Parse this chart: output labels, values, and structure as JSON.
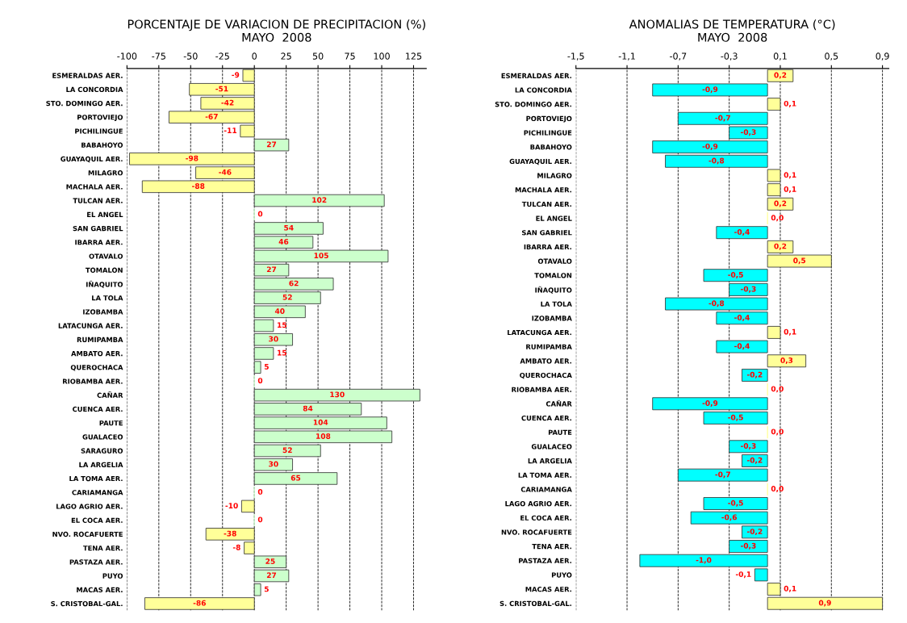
{
  "chart_data": [
    {
      "type": "bar",
      "orientation": "horizontal",
      "title": "PORCENTAJE DE VARIACION DE PRECIPITACION (%)\nMAYO  2008",
      "categories": [
        "ESMERALDAS AER.",
        "LA CONCORDIA",
        "STO. DOMINGO AER.",
        "PORTOVIEJO",
        "PICHILINGUE",
        "BABAHOYO",
        "GUAYAQUIL AER.",
        "MILAGRO",
        "MACHALA AER.",
        "TULCAN AER.",
        "EL ANGEL",
        "SAN GABRIEL",
        "IBARRA AER.",
        "OTAVALO",
        "TOMALON",
        "IÑAQUITO",
        "LA TOLA",
        "IZOBAMBA",
        "LATACUNGA AER.",
        "RUMIPAMBA",
        "AMBATO AER.",
        "QUEROCHACA",
        "RIOBAMBA AER.",
        "CAÑAR",
        "CUENCA AER.",
        "PAUTE",
        "GUALACEO",
        "SARAGURO",
        "LA ARGELIA",
        "LA TOMA AER.",
        "CARIAMANGA",
        "LAGO AGRIO AER.",
        "EL COCA AER.",
        "NVO. ROCAFUERTE",
        "TENA AER.",
        "PASTAZA AER.",
        "PUYO",
        "MACAS AER.",
        "S. CRISTOBAL-GAL."
      ],
      "values": [
        -9,
        -51,
        -42,
        -67,
        -11,
        27,
        -98,
        -46,
        -88,
        102,
        0,
        54,
        46,
        105,
        27,
        62,
        52,
        40,
        15,
        30,
        15,
        5,
        0,
        130,
        84,
        104,
        108,
        52,
        30,
        65,
        0,
        -10,
        0,
        -38,
        -8,
        25,
        27,
        5,
        -86
      ],
      "colors": [
        "#ffff99",
        "#ffff99",
        "#ffff99",
        "#ffff99",
        "#ffff99",
        "#ccffcc",
        "#ffff99",
        "#ffff99",
        "#ffff99",
        "#ccffcc",
        "#ccffcc",
        "#ccffcc",
        "#ccffcc",
        "#ccffcc",
        "#ccffcc",
        "#ccffcc",
        "#ccffcc",
        "#ccffcc",
        "#ccffcc",
        "#ccffcc",
        "#ccffcc",
        "#ccffcc",
        "#ccffcc",
        "#ccffcc",
        "#ccffcc",
        "#ccffcc",
        "#ccffcc",
        "#ccffcc",
        "#ccffcc",
        "#ccffcc",
        "#ccffcc",
        "#ffff99",
        "#ccffcc",
        "#ffff99",
        "#ffff99",
        "#ccffcc",
        "#ccffcc",
        "#ccffcc",
        "#ffff99"
      ],
      "xlim": [
        -100,
        135
      ],
      "xticks": [
        -100,
        -75,
        -50,
        -25,
        0,
        25,
        50,
        75,
        100,
        125
      ],
      "data_labels": true,
      "grid": "x",
      "legend": false
    },
    {
      "type": "bar",
      "orientation": "horizontal",
      "title": "ANOMALIAS DE TEMPERATURA (°C)\nMAYO  2008",
      "categories": [
        "ESMERALDAS AER.",
        "LA CONCORDIA",
        "STO. DOMINGO AER.",
        "PORTOVIEJO",
        "PICHILINGUE",
        "BABAHOYO",
        "GUAYAQUIL AER.",
        "MILAGRO",
        "MACHALA AER.",
        "TULCAN AER.",
        "EL ANGEL",
        "SAN GABRIEL",
        "IBARRA AER.",
        "OTAVALO",
        "TOMALON",
        "IÑAQUITO",
        "LA TOLA",
        "IZOBAMBA",
        "LATACUNGA AER.",
        "RUMIPAMBA",
        "AMBATO AER.",
        "QUEROCHACA",
        "RIOBAMBA AER.",
        "CAÑAR",
        "CUENCA AER.",
        "PAUTE",
        "GUALACEO",
        "LA ARGELIA",
        "LA TOMA AER.",
        "CARIAMANGA",
        "LAGO AGRIO AER.",
        "EL COCA AER.",
        "NVO. ROCAFUERTE",
        "TENA AER.",
        "PASTAZA AER.",
        "PUYO",
        "MACAS AER.",
        "S. CRISTOBAL-GAL."
      ],
      "values": [
        0.2,
        -0.9,
        0.1,
        -0.7,
        -0.3,
        -0.9,
        -0.8,
        0.1,
        0.1,
        0.2,
        0.0,
        -0.4,
        0.2,
        0.5,
        -0.5,
        -0.3,
        -0.8,
        -0.4,
        0.1,
        -0.4,
        0.3,
        -0.2,
        0.0,
        -0.9,
        -0.5,
        0.0,
        -0.3,
        -0.2,
        -0.7,
        0.0,
        -0.5,
        -0.6,
        -0.2,
        -0.3,
        -1.0,
        -0.1,
        0.1,
        0.9
      ],
      "value_labels": [
        "0,2",
        "-0,9",
        "0,1",
        "-0,7",
        "-0,3",
        "-0,9",
        "-0,8",
        "0,1",
        "0,1",
        "0,2",
        "0,0",
        "-0,4",
        "0,2",
        "0,5",
        "-0,5",
        "-0,3",
        "-0,8",
        "-0,4",
        "0,1",
        "-0,4",
        "0,3",
        "-0,2",
        "0,0",
        "-0,9",
        "-0,5",
        "0,0",
        "-0,3",
        "-0,2",
        "-0,7",
        "0,0",
        "-0,5",
        "-0,6",
        "-0,2",
        "-0,3",
        "-1,0",
        "-0,1",
        "0,1",
        "0,9"
      ],
      "colors": [
        "#ffff99",
        "#00ffff",
        "#ffff99",
        "#00ffff",
        "#00ffff",
        "#00ffff",
        "#00ffff",
        "#ffff99",
        "#ffff99",
        "#ffff99",
        "#ffff99",
        "#00ffff",
        "#ffff99",
        "#ffff99",
        "#00ffff",
        "#00ffff",
        "#00ffff",
        "#00ffff",
        "#ffff99",
        "#00ffff",
        "#ffff99",
        "#00ffff",
        "#ffff99",
        "#00ffff",
        "#00ffff",
        "#ffff99",
        "#00ffff",
        "#00ffff",
        "#00ffff",
        "#ffff99",
        "#00ffff",
        "#00ffff",
        "#00ffff",
        "#00ffff",
        "#00ffff",
        "#00ffff",
        "#ffff99",
        "#ffff99"
      ],
      "xlim": [
        -1.5,
        0.95
      ],
      "xticks": [
        {
          "value": -1.5,
          "label": "-1,5"
        },
        {
          "value": -1.1,
          "label": "-1,1"
        },
        {
          "value": -0.7,
          "label": "-0,7"
        },
        {
          "value": -0.3,
          "label": "-0,3"
        },
        {
          "value": 0.1,
          "label": "0,1"
        },
        {
          "value": 0.5,
          "label": "0,5"
        },
        {
          "value": 0.9,
          "label": "0,9"
        }
      ],
      "grid": "x",
      "legend": false
    }
  ]
}
